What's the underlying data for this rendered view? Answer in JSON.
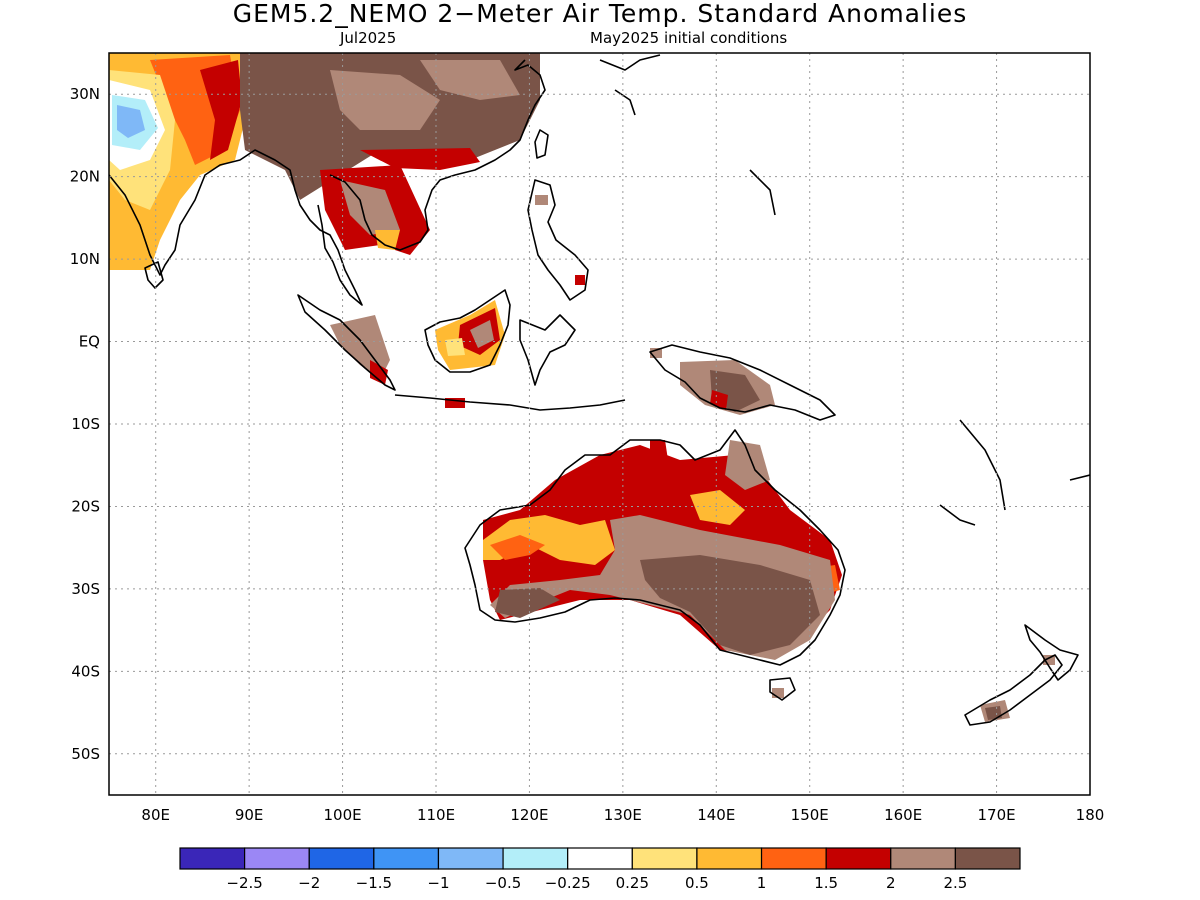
{
  "header": {
    "title": "GEM5.2_NEMO 2−Meter Air Temp. Standard Anomalies",
    "valid_month": "Jul2025",
    "init_conditions": "May2025 initial conditions"
  },
  "axes": {
    "lon_min": 75,
    "lon_max": 180,
    "lat_min": -55,
    "lat_max": 35,
    "lon_ticks": [
      "80E",
      "90E",
      "100E",
      "110E",
      "120E",
      "130E",
      "140E",
      "150E",
      "160E",
      "170E",
      "180"
    ],
    "lat_ticks": [
      "30N",
      "20N",
      "10N",
      "EQ",
      "10S",
      "20S",
      "30S",
      "40S",
      "50S"
    ]
  },
  "colorbar": {
    "colors": [
      "#3a26b8",
      "#9b87f5",
      "#1f66e6",
      "#3f94f5",
      "#7fb8f7",
      "#b3eef9",
      "#ffffff",
      "#ffe27a",
      "#ffba33",
      "#ff6212",
      "#c40000",
      "#b08878",
      "#7a5448"
    ],
    "labels": [
      "−2.5",
      "−2",
      "−1.5",
      "−1",
      "−0.5",
      "−0.25",
      "0.25",
      "0.5",
      "1",
      "1.5",
      "2",
      "2.5"
    ]
  }
}
